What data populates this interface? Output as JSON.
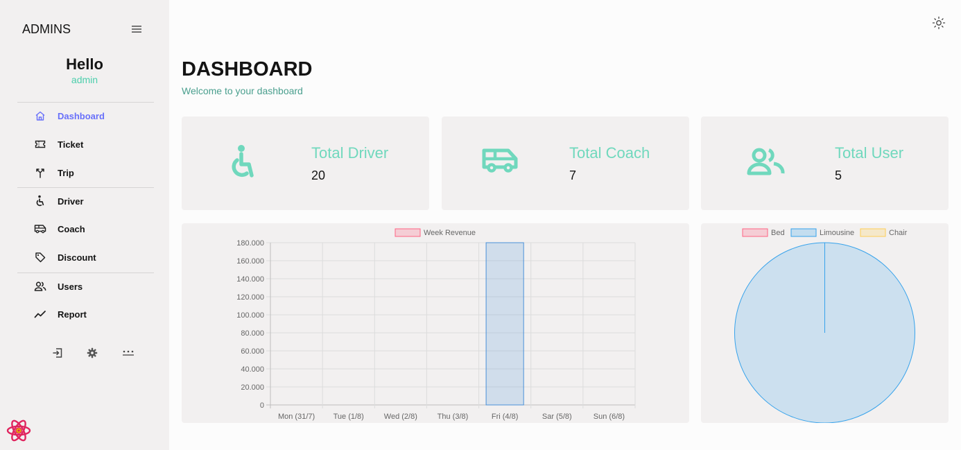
{
  "sidebar": {
    "brand": "ADMINS",
    "greeting": "Hello",
    "role": "admin",
    "items": [
      {
        "label": "Dashboard",
        "icon": "home-icon",
        "active": true
      },
      {
        "label": "Ticket",
        "icon": "ticket-icon"
      },
      {
        "label": "Trip",
        "icon": "trip-icon"
      },
      {
        "label": "Driver",
        "icon": "accessible-icon"
      },
      {
        "label": "Coach",
        "icon": "bus-icon"
      },
      {
        "label": "Discount",
        "icon": "discount-tag-icon"
      },
      {
        "label": "Users",
        "icon": "users-icon"
      },
      {
        "label": "Report",
        "icon": "trend-icon"
      }
    ],
    "bottom_icons": [
      "logout-icon",
      "gear-icon",
      "more-icon"
    ]
  },
  "header": {
    "title": "DASHBOARD",
    "subtitle": "Welcome to your dashboard"
  },
  "stats": [
    {
      "title": "Total Driver",
      "value": "20",
      "icon": "accessible-icon"
    },
    {
      "title": "Total Coach",
      "value": "7",
      "icon": "bus-icon"
    },
    {
      "title": "Total User",
      "value": "5",
      "icon": "users-icon"
    }
  ],
  "colors": {
    "accent": "#70d8bd",
    "accent_dark": "#4cceac",
    "active_nav": "#6870fa",
    "card_bg": "#f2f0f0",
    "sidebar_bg": "#f2f0f0"
  },
  "chart_data": [
    {
      "type": "bar",
      "categories": [
        "Mon (31/7)",
        "Tue (1/8)",
        "Wed (2/8)",
        "Thu (3/8)",
        "Fri (4/8)",
        "Sar (5/8)",
        "Sun (6/8)"
      ],
      "series": [
        {
          "name": "Week Revenue",
          "values": [
            0,
            0,
            0,
            0,
            180000,
            0,
            0
          ],
          "color": "#4a90d9"
        }
      ],
      "ylim": [
        0,
        180000
      ],
      "yticks": [
        "180.000",
        "160.000",
        "140.000",
        "120.000",
        "100.000",
        "80.000",
        "60.000",
        "40.000",
        "20.000",
        "0"
      ],
      "grid": true,
      "legend": "top-center"
    },
    {
      "type": "pie",
      "labels": [
        "Bed",
        "Limousine",
        "Chair"
      ],
      "values": [
        0,
        1,
        0
      ],
      "colors": [
        "#ff6384",
        "#36a2eb",
        "#ffce56"
      ],
      "legend": "top-center"
    }
  ]
}
